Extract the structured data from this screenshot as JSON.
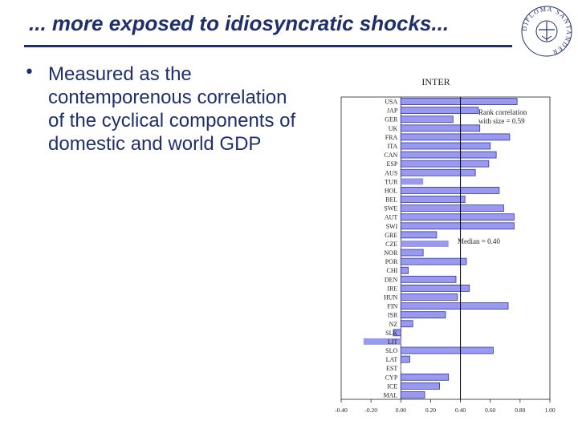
{
  "slide": {
    "title": "... more exposed to idiosyncratic shocks...",
    "bullet_symbol": "•",
    "bullet_text": "Measured as the contemporenous correlation of the cyclical components of domestic and world GDP",
    "logo_text": "DIPLOMA SANTANDER"
  },
  "colors": {
    "title": "#1f2f6e",
    "bar_fill": "#9999ee",
    "bar_stroke": "#3333aa",
    "axis": "#222222"
  },
  "chart_data": {
    "type": "bar",
    "orientation": "horizontal",
    "title": "INTER",
    "categories": [
      "USA",
      "JAP",
      "GER",
      "UK",
      "FRA",
      "ITA",
      "CAN",
      "ESP",
      "AUS",
      "TUR",
      "HOL",
      "BEL",
      "SWE",
      "AUT",
      "SWI",
      "GRE",
      "CZE",
      "NOR",
      "POR",
      "CHI",
      "DEN",
      "IRE",
      "HUN",
      "FIN",
      "ISR",
      "NZ",
      "SLK",
      "LIT",
      "SLO",
      "LAT",
      "EST",
      "CYP",
      "ICE",
      "MAL"
    ],
    "values": [
      0.78,
      0.52,
      0.35,
      0.53,
      0.73,
      0.6,
      0.64,
      0.59,
      0.5,
      0.15,
      0.66,
      0.43,
      0.69,
      0.76,
      0.76,
      0.24,
      0.32,
      0.15,
      0.44,
      0.05,
      0.37,
      0.46,
      0.38,
      0.72,
      0.3,
      0.08,
      -0.05,
      -0.25,
      0.62,
      0.06,
      0.0,
      0.32,
      0.26,
      0.16
    ],
    "highlighted_categories": [
      "TUR",
      "CZE",
      "LIT",
      "EST"
    ],
    "median": 0.4,
    "annotations": [
      "Rank correlation with size = 0.59",
      "Median = 0.40"
    ],
    "xlim": [
      -0.4,
      1.0
    ],
    "xticks": [
      "-0.40",
      "-0.20",
      "0.00",
      "0.20",
      "0.40",
      "0.60",
      "0.80",
      "1.00"
    ],
    "grid": false
  }
}
